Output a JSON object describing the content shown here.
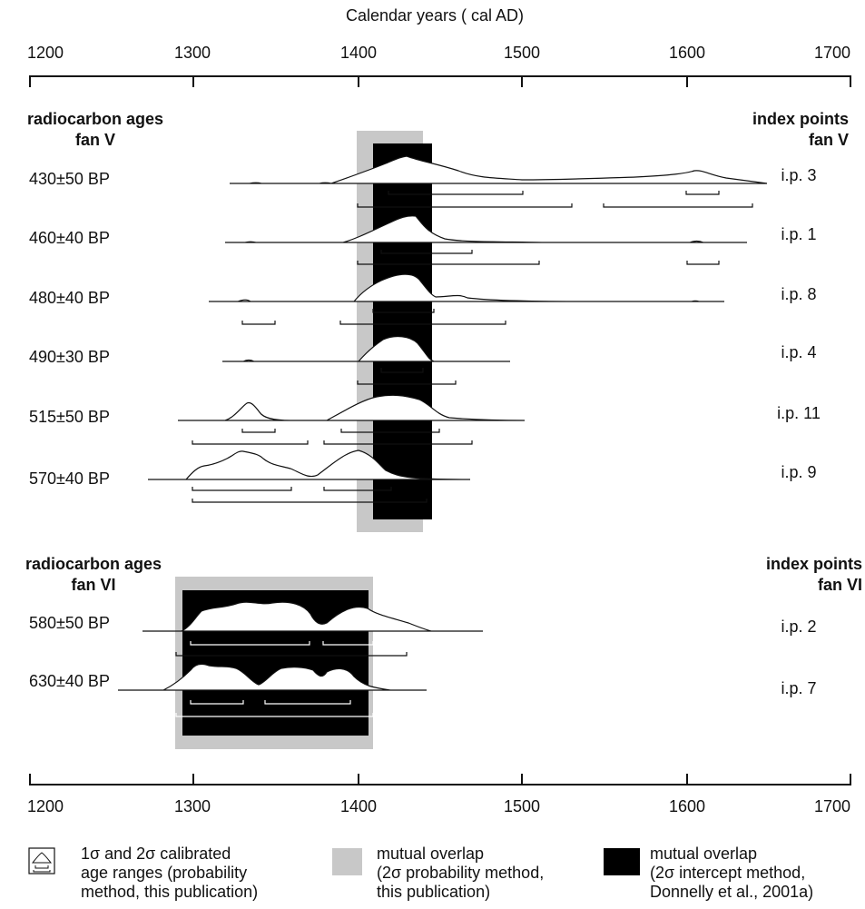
{
  "top_axis_title": "Calendar years ( cal AD)",
  "axis_ticks": [
    "1200",
    "1300",
    "1400",
    "1500",
    "1600",
    "1700"
  ],
  "fan_v": {
    "left_header": [
      "radiocarbon ages",
      "fan V"
    ],
    "right_header": [
      "index points",
      "fan V"
    ],
    "rows": [
      {
        "age": "430±50 BP",
        "ip": "i.p. 3"
      },
      {
        "age": "460±40 BP",
        "ip": "i.p. 1"
      },
      {
        "age": "480±40 BP",
        "ip": "i.p. 8"
      },
      {
        "age": "490±30 BP",
        "ip": "i.p. 4"
      },
      {
        "age": "515±50 BP",
        "ip": "i.p. 11"
      },
      {
        "age": "570±40 BP",
        "ip": "i.p. 9"
      }
    ]
  },
  "fan_vi": {
    "left_header": [
      "radiocarbon ages",
      "fan VI"
    ],
    "right_header": [
      "index points",
      "fan VI"
    ],
    "rows": [
      {
        "age": "580±50 BP",
        "ip": "i.p. 2"
      },
      {
        "age": "630±40 BP",
        "ip": "i.p. 7"
      }
    ]
  },
  "legend": [
    {
      "symbol": "calibrated-range-symbol",
      "lines": [
        "1σ and 2σ calibrated",
        "age ranges (probability",
        "method, this publication)"
      ]
    },
    {
      "symbol": "gray-box",
      "color": "#c8c8c8",
      "lines": [
        "mutual overlap",
        "(2σ probability method,",
        "this publication)"
      ]
    },
    {
      "symbol": "black-box",
      "color": "#000000",
      "lines": [
        "mutual overlap",
        "(2σ intercept method,",
        "Donnelly et al., 2001a)"
      ]
    }
  ],
  "overlaps": {
    "fan_v": {
      "probability_2sigma_cal_ad": [
        1400,
        1440
      ],
      "intercept_2sigma_cal_ad": [
        1410,
        1445
      ]
    },
    "fan_vi": {
      "probability_2sigma_cal_ad": [
        1290,
        1410
      ],
      "intercept_2sigma_cal_ad": [
        1294,
        1406
      ]
    }
  }
}
